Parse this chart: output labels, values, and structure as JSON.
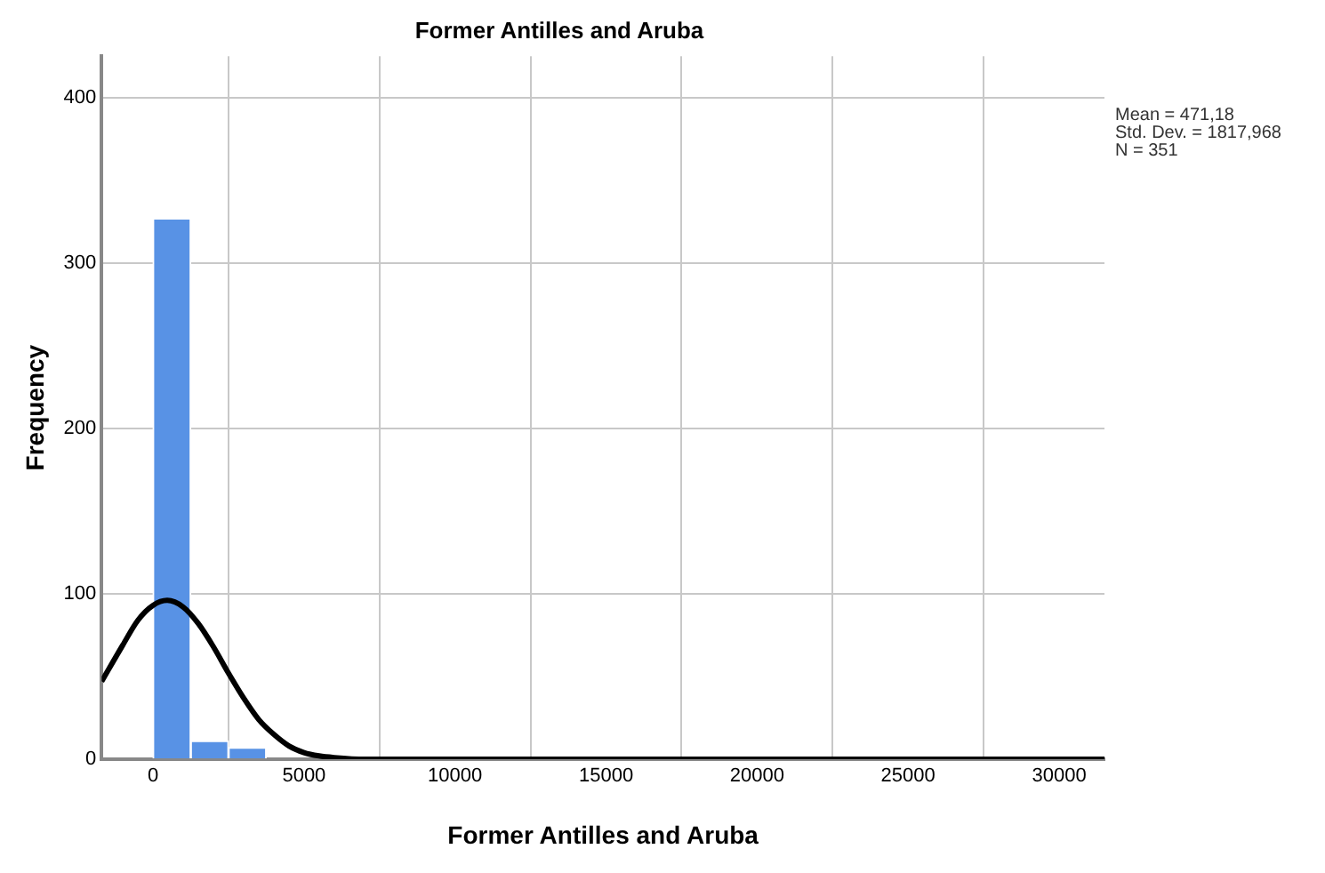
{
  "chart_data": {
    "type": "histogram",
    "title": "Former Antilles and Aruba",
    "xlabel": "Former Antilles and Aruba",
    "ylabel": "Frequency",
    "bins": [
      0,
      1250,
      2500,
      3750,
      5000
    ],
    "values": [
      327,
      11,
      7,
      null
    ],
    "color": "#5892e5",
    "series": [
      {
        "type": "line",
        "color": "#000000",
        "x": [
          -1700,
          -1000,
          -500,
          0,
          471,
          1000,
          1500,
          2000,
          2500,
          3000,
          3500,
          4000,
          4500,
          5000,
          5500,
          6000,
          7000,
          8000,
          31500
        ],
        "values": [
          47,
          69,
          84,
          93,
          96,
          92,
          82,
          68,
          52,
          37,
          24,
          15,
          8,
          4,
          2,
          1,
          0,
          0,
          0
        ]
      }
    ],
    "xlim": [
      -1700,
      31500
    ],
    "xticks": [
      0,
      5000,
      10000,
      15000,
      20000,
      25000,
      30000
    ],
    "ylim": [
      0,
      425
    ],
    "yticks": [
      0,
      100,
      200,
      300,
      400
    ],
    "grid": true,
    "legend": false,
    "annotations": [
      "Mean = 471,18",
      "Std. Dev. = 1817,968",
      "N = 351"
    ]
  }
}
